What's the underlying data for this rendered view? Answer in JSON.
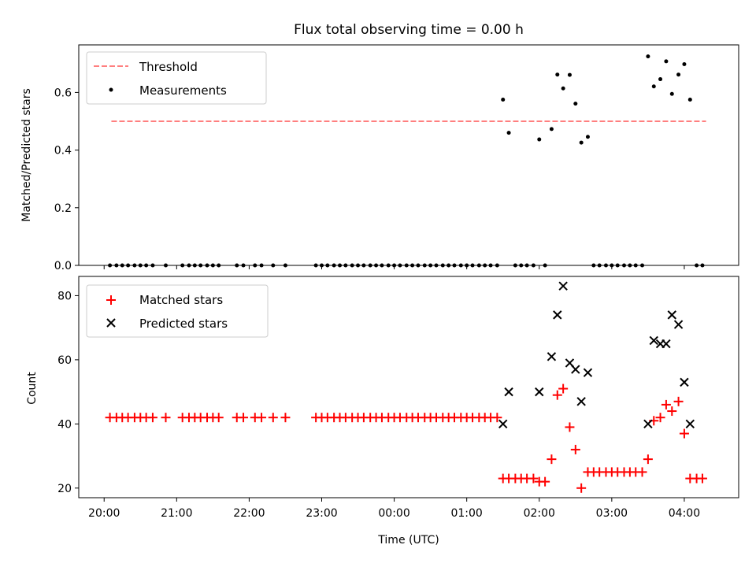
{
  "chart_data": [
    {
      "type": "scatter",
      "title": "Flux total observing time = 0.00 h",
      "ylabel": "Matched/Predicted stars",
      "xlabel": "",
      "xlim_hours": [
        -0.35,
        8.75
      ],
      "ylim": [
        0.0,
        0.765
      ],
      "y_ticks": [
        0.0,
        0.2,
        0.4,
        0.6
      ],
      "y_tick_labels": [
        "0.0",
        "0.2",
        "0.4",
        "0.6"
      ],
      "legend_position": "top-left",
      "threshold": {
        "name": "Threshold",
        "value": 0.5,
        "x": [
          0.1,
          8.3
        ],
        "color": "#ff7f7f",
        "style": "dashed"
      },
      "series": [
        {
          "name": "Measurements",
          "color": "#000000",
          "marker": "dot",
          "points": [
            [
              0.08,
              0
            ],
            [
              0.17,
              0
            ],
            [
              0.25,
              0
            ],
            [
              0.33,
              0
            ],
            [
              0.42,
              0
            ],
            [
              0.5,
              0
            ],
            [
              0.58,
              0
            ],
            [
              0.67,
              0
            ],
            [
              0.85,
              0
            ],
            [
              1.08,
              0
            ],
            [
              1.17,
              0
            ],
            [
              1.25,
              0
            ],
            [
              1.33,
              0
            ],
            [
              1.42,
              0
            ],
            [
              1.5,
              0
            ],
            [
              1.58,
              0
            ],
            [
              1.83,
              0
            ],
            [
              1.92,
              0
            ],
            [
              2.08,
              0
            ],
            [
              2.17,
              0
            ],
            [
              2.33,
              0
            ],
            [
              2.5,
              0
            ],
            [
              2.92,
              0
            ],
            [
              3.0,
              0
            ],
            [
              3.08,
              0
            ],
            [
              3.17,
              0
            ],
            [
              3.25,
              0
            ],
            [
              3.33,
              0
            ],
            [
              3.42,
              0
            ],
            [
              3.5,
              0
            ],
            [
              3.58,
              0
            ],
            [
              3.67,
              0
            ],
            [
              3.75,
              0
            ],
            [
              3.83,
              0
            ],
            [
              3.92,
              0
            ],
            [
              4.0,
              0
            ],
            [
              4.08,
              0
            ],
            [
              4.17,
              0
            ],
            [
              4.25,
              0
            ],
            [
              4.33,
              0
            ],
            [
              4.42,
              0
            ],
            [
              4.5,
              0
            ],
            [
              4.58,
              0
            ],
            [
              4.67,
              0
            ],
            [
              4.75,
              0
            ],
            [
              4.83,
              0
            ],
            [
              4.92,
              0
            ],
            [
              5.0,
              0
            ],
            [
              5.08,
              0
            ],
            [
              5.17,
              0
            ],
            [
              5.25,
              0
            ],
            [
              5.33,
              0
            ],
            [
              5.42,
              0
            ],
            [
              5.5,
              0.575
            ],
            [
              5.58,
              0.46
            ],
            [
              5.67,
              0
            ],
            [
              5.75,
              0
            ],
            [
              5.83,
              0
            ],
            [
              5.92,
              0
            ],
            [
              6.0,
              0.437
            ],
            [
              6.08,
              0
            ],
            [
              6.17,
              0.473
            ],
            [
              6.25,
              0.662
            ],
            [
              6.33,
              0.614
            ],
            [
              6.42,
              0.661
            ],
            [
              6.5,
              0.561
            ],
            [
              6.58,
              0.426
            ],
            [
              6.67,
              0.446
            ],
            [
              6.75,
              0
            ],
            [
              6.83,
              0
            ],
            [
              6.92,
              0
            ],
            [
              7.0,
              0
            ],
            [
              7.08,
              0
            ],
            [
              7.17,
              0
            ],
            [
              7.25,
              0
            ],
            [
              7.33,
              0
            ],
            [
              7.42,
              0
            ],
            [
              7.5,
              0.725
            ],
            [
              7.58,
              0.621
            ],
            [
              7.67,
              0.646
            ],
            [
              7.75,
              0.708
            ],
            [
              7.83,
              0.595
            ],
            [
              7.92,
              0.662
            ],
            [
              8.0,
              0.698
            ],
            [
              8.08,
              0.575
            ],
            [
              8.17,
              0
            ],
            [
              8.25,
              0
            ]
          ]
        }
      ]
    },
    {
      "type": "scatter",
      "title": "",
      "xlabel": "Time (UTC)",
      "ylabel": "Count",
      "xlim_hours": [
        -0.35,
        8.75
      ],
      "ylim": [
        17,
        86
      ],
      "y_ticks": [
        20,
        40,
        60,
        80
      ],
      "y_tick_labels": [
        "20",
        "40",
        "60",
        "80"
      ],
      "x_ticks_hours": [
        0,
        1,
        2,
        3,
        4,
        5,
        6,
        7,
        8
      ],
      "x_tick_labels": [
        "20:00",
        "21:00",
        "22:00",
        "23:00",
        "00:00",
        "01:00",
        "02:00",
        "03:00",
        "04:00"
      ],
      "legend_position": "top-left",
      "series": [
        {
          "name": "Matched stars",
          "color": "#ff0000",
          "marker": "plus",
          "points": [
            [
              0.08,
              42
            ],
            [
              0.17,
              42
            ],
            [
              0.25,
              42
            ],
            [
              0.33,
              42
            ],
            [
              0.42,
              42
            ],
            [
              0.5,
              42
            ],
            [
              0.58,
              42
            ],
            [
              0.67,
              42
            ],
            [
              0.85,
              42
            ],
            [
              1.08,
              42
            ],
            [
              1.17,
              42
            ],
            [
              1.25,
              42
            ],
            [
              1.33,
              42
            ],
            [
              1.42,
              42
            ],
            [
              1.5,
              42
            ],
            [
              1.58,
              42
            ],
            [
              1.83,
              42
            ],
            [
              1.92,
              42
            ],
            [
              2.08,
              42
            ],
            [
              2.17,
              42
            ],
            [
              2.33,
              42
            ],
            [
              2.5,
              42
            ],
            [
              2.92,
              42
            ],
            [
              3.0,
              42
            ],
            [
              3.08,
              42
            ],
            [
              3.17,
              42
            ],
            [
              3.25,
              42
            ],
            [
              3.33,
              42
            ],
            [
              3.42,
              42
            ],
            [
              3.5,
              42
            ],
            [
              3.58,
              42
            ],
            [
              3.67,
              42
            ],
            [
              3.75,
              42
            ],
            [
              3.83,
              42
            ],
            [
              3.92,
              42
            ],
            [
              4.0,
              42
            ],
            [
              4.08,
              42
            ],
            [
              4.17,
              42
            ],
            [
              4.25,
              42
            ],
            [
              4.33,
              42
            ],
            [
              4.42,
              42
            ],
            [
              4.5,
              42
            ],
            [
              4.58,
              42
            ],
            [
              4.67,
              42
            ],
            [
              4.75,
              42
            ],
            [
              4.83,
              42
            ],
            [
              4.92,
              42
            ],
            [
              5.0,
              42
            ],
            [
              5.08,
              42
            ],
            [
              5.17,
              42
            ],
            [
              5.25,
              42
            ],
            [
              5.33,
              42
            ],
            [
              5.42,
              42
            ],
            [
              5.5,
              23
            ],
            [
              5.58,
              23
            ],
            [
              5.67,
              23
            ],
            [
              5.75,
              23
            ],
            [
              5.83,
              23
            ],
            [
              5.92,
              23
            ],
            [
              6.0,
              22
            ],
            [
              6.08,
              22
            ],
            [
              6.17,
              29
            ],
            [
              6.25,
              49
            ],
            [
              6.33,
              51
            ],
            [
              6.42,
              39
            ],
            [
              6.5,
              32
            ],
            [
              6.58,
              20
            ],
            [
              6.67,
              25
            ],
            [
              6.75,
              25
            ],
            [
              6.83,
              25
            ],
            [
              6.92,
              25
            ],
            [
              7.0,
              25
            ],
            [
              7.08,
              25
            ],
            [
              7.17,
              25
            ],
            [
              7.25,
              25
            ],
            [
              7.33,
              25
            ],
            [
              7.42,
              25
            ],
            [
              7.5,
              29
            ],
            [
              7.58,
              41
            ],
            [
              7.67,
              42
            ],
            [
              7.75,
              46
            ],
            [
              7.83,
              44
            ],
            [
              7.92,
              47
            ],
            [
              8.0,
              37
            ],
            [
              8.08,
              23
            ],
            [
              8.17,
              23
            ],
            [
              8.25,
              23
            ]
          ]
        },
        {
          "name": "Predicted stars",
          "color": "#000000",
          "marker": "x",
          "points": [
            [
              5.5,
              40
            ],
            [
              5.58,
              50
            ],
            [
              6.0,
              50
            ],
            [
              6.17,
              61
            ],
            [
              6.25,
              74
            ],
            [
              6.33,
              83
            ],
            [
              6.42,
              59
            ],
            [
              6.5,
              57
            ],
            [
              6.58,
              47
            ],
            [
              6.67,
              56
            ],
            [
              7.5,
              40
            ],
            [
              7.58,
              66
            ],
            [
              7.67,
              65
            ],
            [
              7.75,
              65
            ],
            [
              7.83,
              74
            ],
            [
              7.92,
              71
            ],
            [
              8.0,
              53
            ],
            [
              8.08,
              40
            ]
          ]
        }
      ]
    }
  ]
}
